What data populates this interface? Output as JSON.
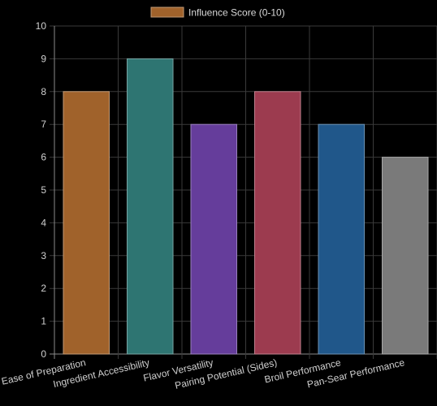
{
  "chart_data": {
    "type": "bar",
    "categories": [
      "Ease of Preparation",
      "Ingredient Accessibility",
      "Flavor Versatility",
      "Pairing Potential (Sides)",
      "Broil Performance",
      "Pan-Sear Performance"
    ],
    "series": [
      {
        "name": "Influence Score (0-10)",
        "values": [
          8,
          9,
          7,
          8,
          7,
          6
        ]
      }
    ],
    "colors": [
      "#a0622b",
      "#2e7572",
      "#653d9b",
      "#9c3b4f",
      "#20578a",
      "#7a7a7a"
    ],
    "legend_color": "#a0622b",
    "ylim": [
      0,
      10
    ],
    "y_ticks": [
      0,
      1,
      2,
      3,
      4,
      5,
      6,
      7,
      8,
      9,
      10
    ],
    "grid": true,
    "legend_position": "top-center",
    "title": "",
    "xlabel": "",
    "ylabel": ""
  }
}
